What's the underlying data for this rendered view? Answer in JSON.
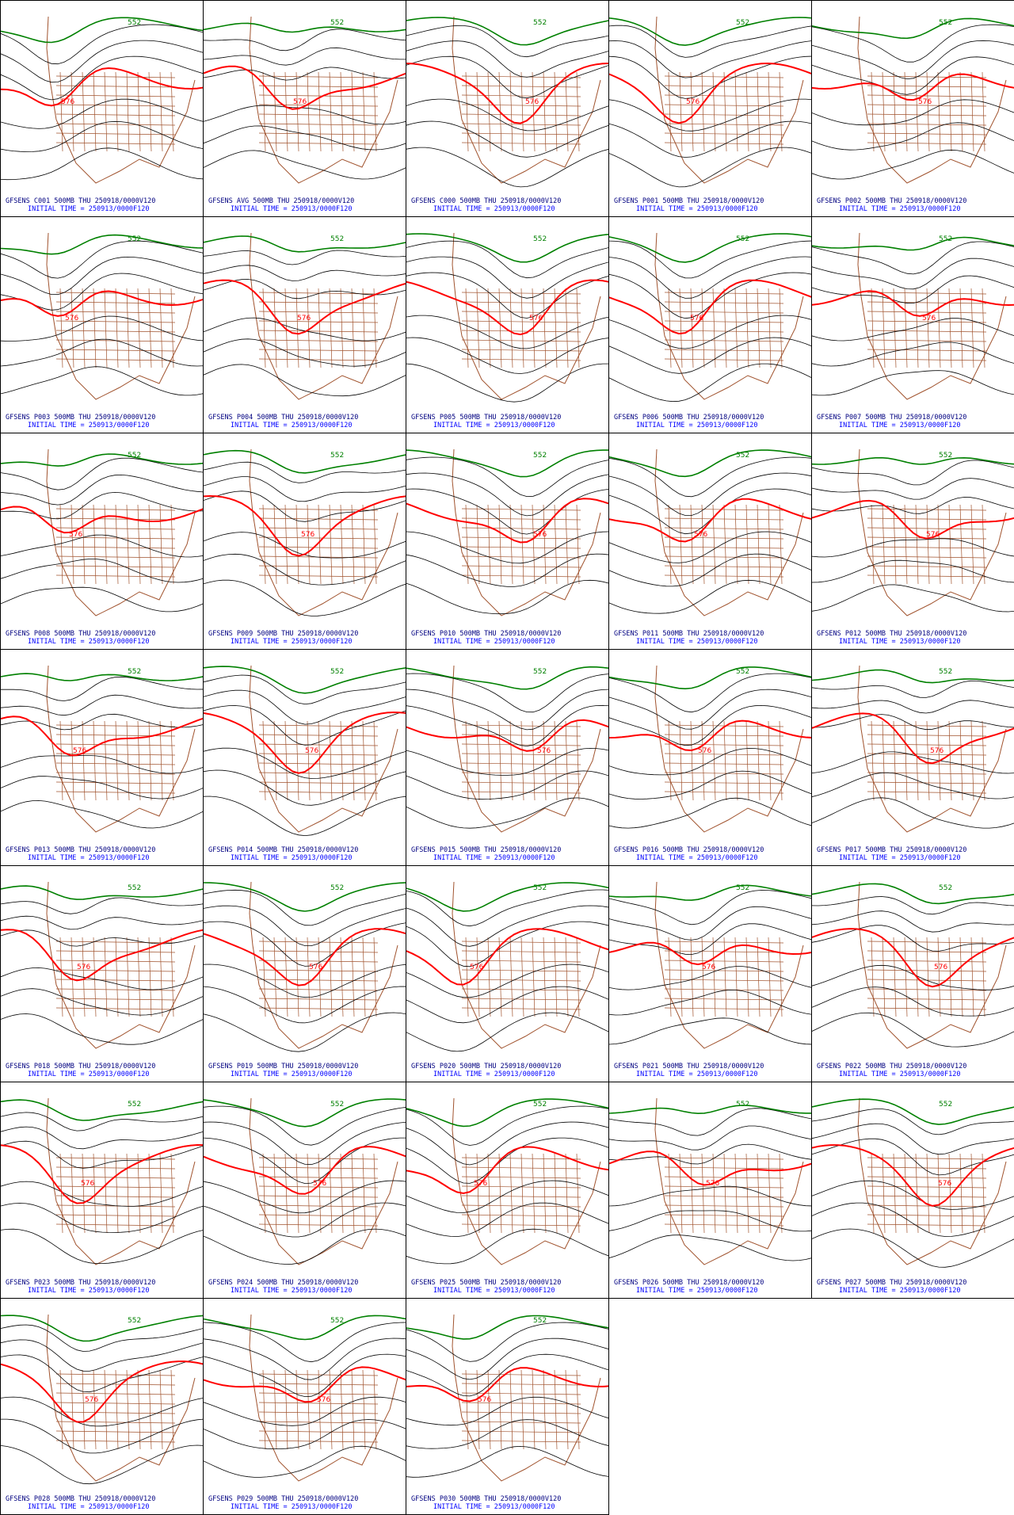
{
  "product": {
    "level": "500MB",
    "valid": "THU 250918/0000V120",
    "initial_time": "INITIAL TIME = 250913/0000F120",
    "contour_labels": {
      "low": "552",
      "high": "576"
    }
  },
  "colors": {
    "background": "#ffffff",
    "contour": "#000000",
    "contour_552": "#008000",
    "contour_576": "#ff0000",
    "map": "#a0522d",
    "caption_top": "#000080",
    "caption_bottom": "#0000ff"
  },
  "panels": [
    {
      "member": "C001",
      "caption": "GFSENS C001 500MB THU 250918/0000V120"
    },
    {
      "member": "AVG",
      "caption": "GFSENS AVG 500MB THU 250918/0000V120"
    },
    {
      "member": "C000",
      "caption": "GFSENS C000 500MB THU 250918/0000V120"
    },
    {
      "member": "P001",
      "caption": "GFSENS P001 500MB THU 250918/0000V120"
    },
    {
      "member": "P002",
      "caption": "GFSENS P002 500MB THU 250918/0000V120"
    },
    {
      "member": "P003",
      "caption": "GFSENS P003 500MB THU 250918/0000V120"
    },
    {
      "member": "P004",
      "caption": "GFSENS P004 500MB THU 250918/0000V120"
    },
    {
      "member": "P005",
      "caption": "GFSENS P005 500MB THU 250918/0000V120"
    },
    {
      "member": "P006",
      "caption": "GFSENS P006 500MB THU 250918/0000V120"
    },
    {
      "member": "P007",
      "caption": "GFSENS P007 500MB THU 250918/0000V120"
    },
    {
      "member": "P008",
      "caption": "GFSENS P008 500MB THU 250918/0000V120"
    },
    {
      "member": "P009",
      "caption": "GFSENS P009 500MB THU 250918/0000V120"
    },
    {
      "member": "P010",
      "caption": "GFSENS P010 500MB THU 250918/0000V120"
    },
    {
      "member": "P011",
      "caption": "GFSENS P011 500MB THU 250918/0000V120"
    },
    {
      "member": "P012",
      "caption": "GFSENS P012 500MB THU 250918/0000V120"
    },
    {
      "member": "P013",
      "caption": "GFSENS P013 500MB THU 250918/0000V120"
    },
    {
      "member": "P014",
      "caption": "GFSENS P014 500MB THU 250918/0000V120"
    },
    {
      "member": "P015",
      "caption": "GFSENS P015 500MB THU 250918/0000V120"
    },
    {
      "member": "P016",
      "caption": "GFSENS P016 500MB THU 250918/0000V120"
    },
    {
      "member": "P017",
      "caption": "GFSENS P017 500MB THU 250918/0000V120"
    },
    {
      "member": "P018",
      "caption": "GFSENS P018 500MB THU 250918/0000V120"
    },
    {
      "member": "P019",
      "caption": "GFSENS P019 500MB THU 250918/0000V120"
    },
    {
      "member": "P020",
      "caption": "GFSENS P020 500MB THU 250918/0000V120"
    },
    {
      "member": "P021",
      "caption": "GFSENS P021 500MB THU 250918/0000V120"
    },
    {
      "member": "P022",
      "caption": "GFSENS P022 500MB THU 250918/0000V120"
    },
    {
      "member": "P023",
      "caption": "GFSENS P023 500MB THU 250918/0000V120"
    },
    {
      "member": "P024",
      "caption": "GFSENS P024 500MB THU 250918/0000V120"
    },
    {
      "member": "P025",
      "caption": "GFSENS P025 500MB THU 250918/0000V120"
    },
    {
      "member": "P026",
      "caption": "GFSENS P026 500MB THU 250918/0000V120"
    },
    {
      "member": "P027",
      "caption": "GFSENS P027 500MB THU 250918/0000V120"
    },
    {
      "member": "P028",
      "caption": "GFSENS P028 500MB THU 250918/0000V120"
    },
    {
      "member": "P029",
      "caption": "GFSENS P029 500MB THU 250918/0000V120"
    },
    {
      "member": "P030",
      "caption": "GFSENS P030 500MB THU 250918/0000V120"
    }
  ]
}
